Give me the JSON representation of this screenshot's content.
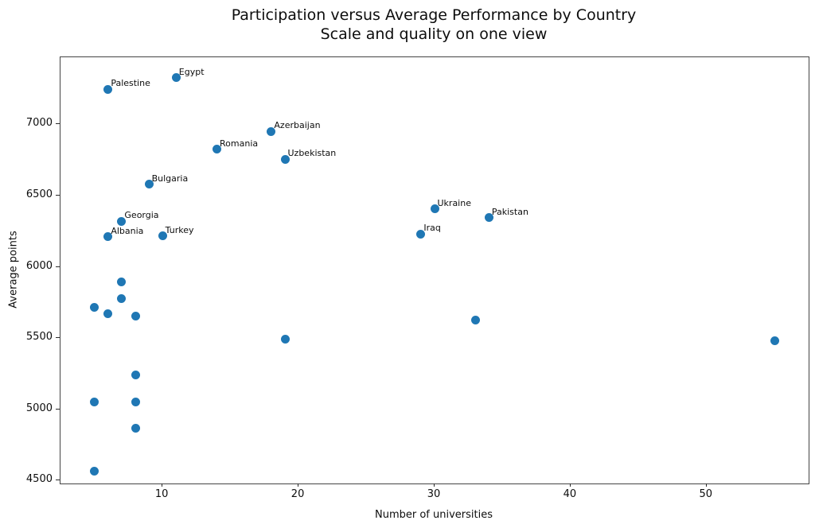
{
  "chart_data": {
    "type": "scatter",
    "title": "Participation versus Average Performance by Country",
    "subtitle": "Scale and quality on one view",
    "xlabel": "Number of universities",
    "ylabel": "Average points",
    "xlim": [
      2.5,
      57.5
    ],
    "ylim": [
      4480,
      7470
    ],
    "xticks": [
      10,
      20,
      30,
      40,
      50
    ],
    "yticks": [
      4500,
      5000,
      5500,
      6000,
      6500,
      7000
    ],
    "grid": false,
    "legend_position": "none",
    "marker_color": "#1f77b4",
    "points": [
      {
        "x": 11,
        "y": 7325,
        "label": "Egypt"
      },
      {
        "x": 6,
        "y": 7245,
        "label": "Palestine"
      },
      {
        "x": 18,
        "y": 6950,
        "label": "Azerbaijan"
      },
      {
        "x": 14,
        "y": 6825,
        "label": "Romania"
      },
      {
        "x": 19,
        "y": 6755,
        "label": "Uzbekistan"
      },
      {
        "x": 9,
        "y": 6580,
        "label": "Bulgaria"
      },
      {
        "x": 30,
        "y": 6405,
        "label": "Ukraine"
      },
      {
        "x": 34,
        "y": 6345,
        "label": "Pakistan"
      },
      {
        "x": 7,
        "y": 6320,
        "label": "Georgia"
      },
      {
        "x": 29,
        "y": 6230,
        "label": "Iraq"
      },
      {
        "x": 10,
        "y": 6215,
        "label": "Turkey"
      },
      {
        "x": 6,
        "y": 6210,
        "label": "Albania"
      },
      {
        "x": 7,
        "y": 5895,
        "label": ""
      },
      {
        "x": 7,
        "y": 5775,
        "label": ""
      },
      {
        "x": 5,
        "y": 5715,
        "label": ""
      },
      {
        "x": 6,
        "y": 5670,
        "label": ""
      },
      {
        "x": 8,
        "y": 5655,
        "label": ""
      },
      {
        "x": 33,
        "y": 5625,
        "label": ""
      },
      {
        "x": 19,
        "y": 5490,
        "label": ""
      },
      {
        "x": 55,
        "y": 5480,
        "label": ""
      },
      {
        "x": 8,
        "y": 5240,
        "label": ""
      },
      {
        "x": 5,
        "y": 5050,
        "label": ""
      },
      {
        "x": 8,
        "y": 5050,
        "label": ""
      },
      {
        "x": 8,
        "y": 4865,
        "label": ""
      },
      {
        "x": 5,
        "y": 4565,
        "label": ""
      }
    ]
  }
}
